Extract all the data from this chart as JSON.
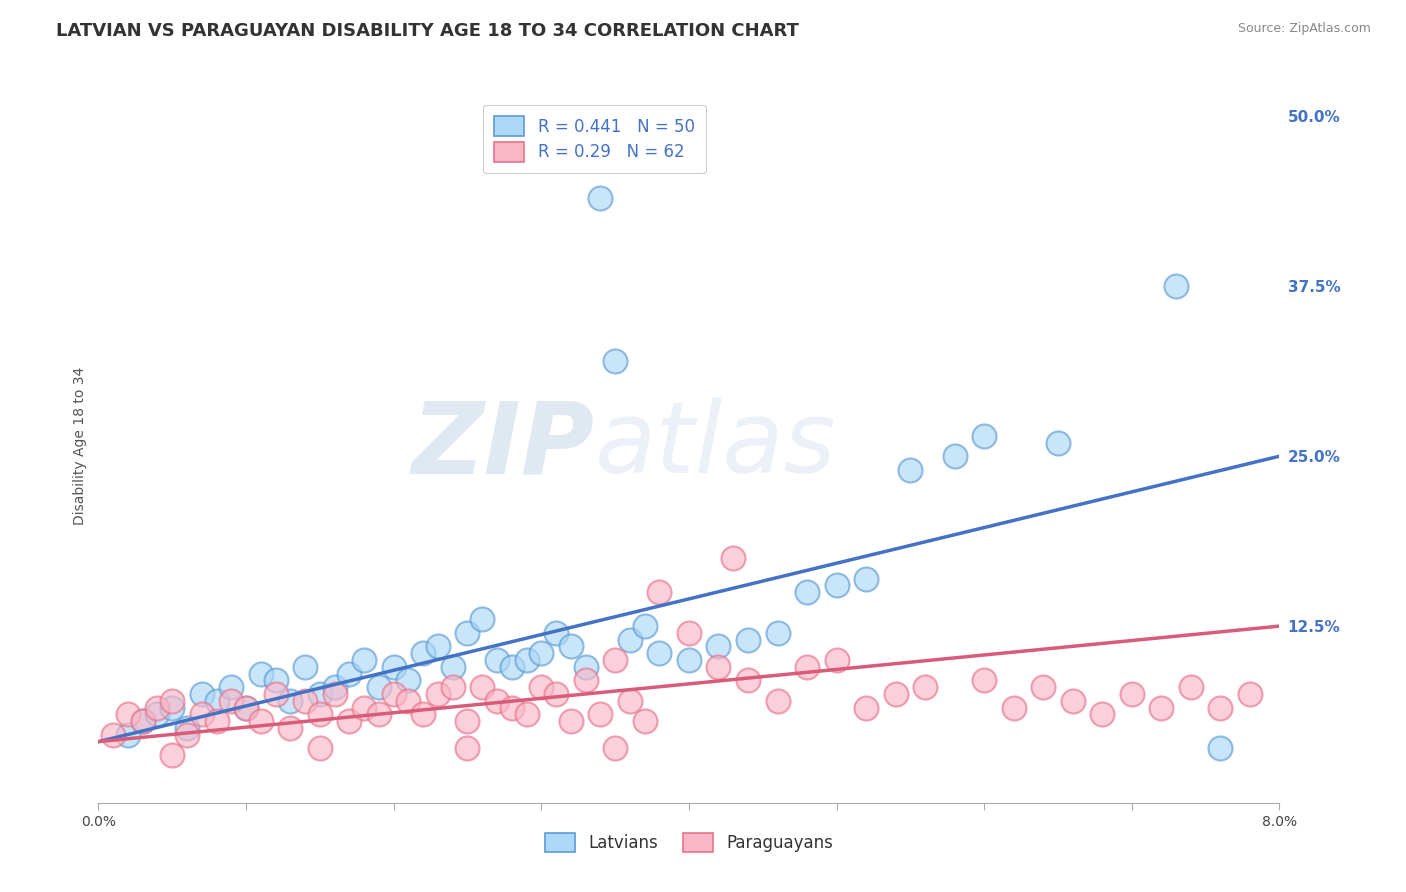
{
  "title": "LATVIAN VS PARAGUAYAN DISABILITY AGE 18 TO 34 CORRELATION CHART",
  "source_text": "Source: ZipAtlas.com",
  "ylabel": "Disability Age 18 to 34",
  "xlim": [
    0.0,
    0.08
  ],
  "ylim": [
    -0.005,
    0.52
  ],
  "xticks": [
    0.0,
    0.01,
    0.02,
    0.03,
    0.04,
    0.05,
    0.06,
    0.07,
    0.08
  ],
  "xtick_labels": [
    "0.0%",
    "",
    "",
    "",
    "",
    "",
    "",
    "",
    "8.0%"
  ],
  "ytick_labels_right": [
    "50.0%",
    "37.5%",
    "25.0%",
    "12.5%"
  ],
  "yticks_right": [
    0.5,
    0.375,
    0.25,
    0.125
  ],
  "blue_R": 0.441,
  "blue_N": 50,
  "pink_R": 0.29,
  "pink_N": 62,
  "blue_color": "#ADD8F7",
  "pink_color": "#F9B8C8",
  "blue_edge_color": "#5B9BD5",
  "pink_edge_color": "#E8728A",
  "blue_line_color": "#4472C4",
  "pink_line_color": "#D95B7A",
  "blue_trend": [
    0.0,
    0.08,
    0.04,
    0.25
  ],
  "pink_trend": [
    0.0,
    0.08,
    0.04,
    0.125
  ],
  "blue_scatter": [
    [
      0.002,
      0.045
    ],
    [
      0.003,
      0.055
    ],
    [
      0.004,
      0.06
    ],
    [
      0.005,
      0.065
    ],
    [
      0.006,
      0.05
    ],
    [
      0.007,
      0.075
    ],
    [
      0.008,
      0.07
    ],
    [
      0.009,
      0.08
    ],
    [
      0.01,
      0.065
    ],
    [
      0.011,
      0.09
    ],
    [
      0.012,
      0.085
    ],
    [
      0.013,
      0.07
    ],
    [
      0.014,
      0.095
    ],
    [
      0.015,
      0.075
    ],
    [
      0.016,
      0.08
    ],
    [
      0.017,
      0.09
    ],
    [
      0.018,
      0.1
    ],
    [
      0.019,
      0.08
    ],
    [
      0.02,
      0.095
    ],
    [
      0.021,
      0.085
    ],
    [
      0.022,
      0.105
    ],
    [
      0.023,
      0.11
    ],
    [
      0.024,
      0.095
    ],
    [
      0.025,
      0.12
    ],
    [
      0.026,
      0.13
    ],
    [
      0.027,
      0.1
    ],
    [
      0.028,
      0.095
    ],
    [
      0.029,
      0.1
    ],
    [
      0.03,
      0.105
    ],
    [
      0.031,
      0.12
    ],
    [
      0.032,
      0.11
    ],
    [
      0.033,
      0.095
    ],
    [
      0.034,
      0.44
    ],
    [
      0.035,
      0.32
    ],
    [
      0.036,
      0.115
    ],
    [
      0.037,
      0.125
    ],
    [
      0.038,
      0.105
    ],
    [
      0.04,
      0.1
    ],
    [
      0.042,
      0.11
    ],
    [
      0.044,
      0.115
    ],
    [
      0.046,
      0.12
    ],
    [
      0.048,
      0.15
    ],
    [
      0.05,
      0.155
    ],
    [
      0.052,
      0.16
    ],
    [
      0.055,
      0.24
    ],
    [
      0.058,
      0.25
    ],
    [
      0.06,
      0.265
    ],
    [
      0.065,
      0.26
    ],
    [
      0.073,
      0.375
    ],
    [
      0.076,
      0.035
    ]
  ],
  "pink_scatter": [
    [
      0.001,
      0.045
    ],
    [
      0.002,
      0.06
    ],
    [
      0.003,
      0.055
    ],
    [
      0.004,
      0.065
    ],
    [
      0.005,
      0.07
    ],
    [
      0.006,
      0.045
    ],
    [
      0.007,
      0.06
    ],
    [
      0.008,
      0.055
    ],
    [
      0.009,
      0.07
    ],
    [
      0.01,
      0.065
    ],
    [
      0.011,
      0.055
    ],
    [
      0.012,
      0.075
    ],
    [
      0.013,
      0.05
    ],
    [
      0.014,
      0.07
    ],
    [
      0.015,
      0.06
    ],
    [
      0.016,
      0.075
    ],
    [
      0.017,
      0.055
    ],
    [
      0.018,
      0.065
    ],
    [
      0.019,
      0.06
    ],
    [
      0.02,
      0.075
    ],
    [
      0.021,
      0.07
    ],
    [
      0.022,
      0.06
    ],
    [
      0.023,
      0.075
    ],
    [
      0.024,
      0.08
    ],
    [
      0.025,
      0.055
    ],
    [
      0.026,
      0.08
    ],
    [
      0.027,
      0.07
    ],
    [
      0.028,
      0.065
    ],
    [
      0.029,
      0.06
    ],
    [
      0.03,
      0.08
    ],
    [
      0.031,
      0.075
    ],
    [
      0.032,
      0.055
    ],
    [
      0.033,
      0.085
    ],
    [
      0.034,
      0.06
    ],
    [
      0.035,
      0.1
    ],
    [
      0.036,
      0.07
    ],
    [
      0.037,
      0.055
    ],
    [
      0.038,
      0.15
    ],
    [
      0.04,
      0.12
    ],
    [
      0.042,
      0.095
    ],
    [
      0.043,
      0.175
    ],
    [
      0.044,
      0.085
    ],
    [
      0.046,
      0.07
    ],
    [
      0.048,
      0.095
    ],
    [
      0.05,
      0.1
    ],
    [
      0.052,
      0.065
    ],
    [
      0.054,
      0.075
    ],
    [
      0.056,
      0.08
    ],
    [
      0.06,
      0.085
    ],
    [
      0.062,
      0.065
    ],
    [
      0.064,
      0.08
    ],
    [
      0.066,
      0.07
    ],
    [
      0.068,
      0.06
    ],
    [
      0.07,
      0.075
    ],
    [
      0.072,
      0.065
    ],
    [
      0.074,
      0.08
    ],
    [
      0.076,
      0.065
    ],
    [
      0.078,
      0.075
    ],
    [
      0.005,
      0.03
    ],
    [
      0.015,
      0.035
    ],
    [
      0.025,
      0.035
    ],
    [
      0.035,
      0.035
    ]
  ],
  "watermark_zip": "ZIP",
  "watermark_atlas": "atlas",
  "background_color": "#FFFFFF",
  "grid_color": "#DDDDDD",
  "title_fontsize": 13,
  "axis_label_fontsize": 10,
  "tick_fontsize": 10,
  "legend_fontsize": 12
}
